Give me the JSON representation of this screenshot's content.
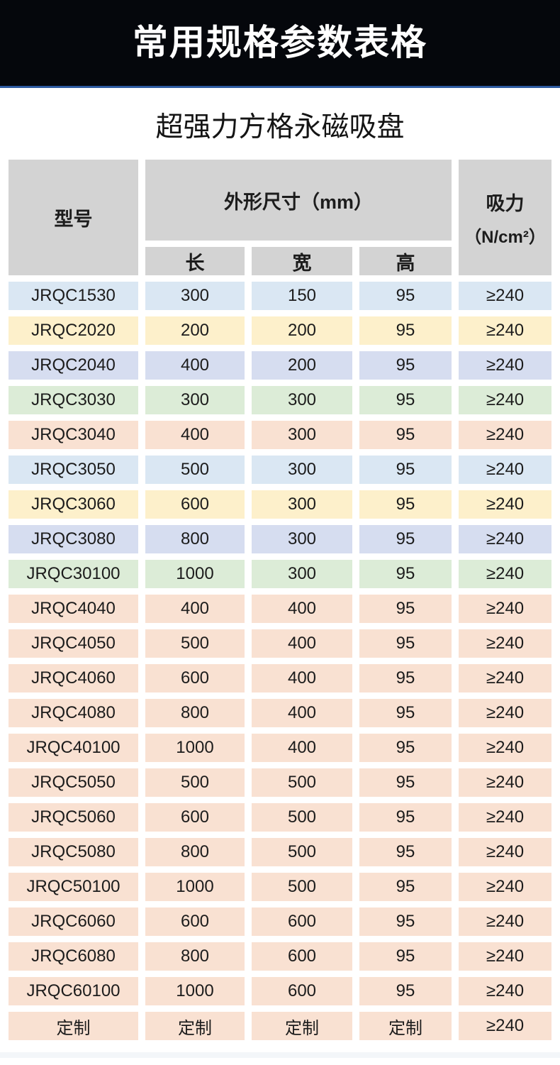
{
  "banner": {
    "title": "常用规格参数表格",
    "bg_color": "#05070c",
    "divider_color": "#2d5aa0"
  },
  "subtitle": "超强力方格永磁吸盘",
  "table": {
    "header": {
      "model": "型号",
      "dims_group": "外形尺寸（mm）",
      "sub_cols": [
        "长",
        "宽",
        "高"
      ],
      "force_line1": "吸力",
      "force_line2": "（N/cm²）",
      "bg": "#d3d3d3"
    },
    "row_colors": {
      "blue": "#dae7f3",
      "yellow": "#fdf0cb",
      "lavender": "#d6ddf0",
      "green": "#dcecd7",
      "peach": "#f9e1d2"
    },
    "rows": [
      {
        "model": "JRQC1530",
        "length": "300",
        "width": "150",
        "height": "95",
        "force": "≥240",
        "color": "blue"
      },
      {
        "model": "JRQC2020",
        "length": "200",
        "width": "200",
        "height": "95",
        "force": "≥240",
        "color": "yellow"
      },
      {
        "model": "JRQC2040",
        "length": "400",
        "width": "200",
        "height": "95",
        "force": "≥240",
        "color": "lavender"
      },
      {
        "model": "JRQC3030",
        "length": "300",
        "width": "300",
        "height": "95",
        "force": "≥240",
        "color": "green"
      },
      {
        "model": "JRQC3040",
        "length": "400",
        "width": "300",
        "height": "95",
        "force": "≥240",
        "color": "peach"
      },
      {
        "model": "JRQC3050",
        "length": "500",
        "width": "300",
        "height": "95",
        "force": "≥240",
        "color": "blue"
      },
      {
        "model": "JRQC3060",
        "length": "600",
        "width": "300",
        "height": "95",
        "force": "≥240",
        "color": "yellow"
      },
      {
        "model": "JRQC3080",
        "length": "800",
        "width": "300",
        "height": "95",
        "force": "≥240",
        "color": "lavender"
      },
      {
        "model": "JRQC30100",
        "length": "1000",
        "width": "300",
        "height": "95",
        "force": "≥240",
        "color": "green"
      },
      {
        "model": "JRQC4040",
        "length": "400",
        "width": "400",
        "height": "95",
        "force": "≥240",
        "color": "peach"
      },
      {
        "model": "JRQC4050",
        "length": "500",
        "width": "400",
        "height": "95",
        "force": "≥240",
        "color": "peach"
      },
      {
        "model": "JRQC4060",
        "length": "600",
        "width": "400",
        "height": "95",
        "force": "≥240",
        "color": "peach"
      },
      {
        "model": "JRQC4080",
        "length": "800",
        "width": "400",
        "height": "95",
        "force": "≥240",
        "color": "peach"
      },
      {
        "model": "JRQC40100",
        "length": "1000",
        "width": "400",
        "height": "95",
        "force": "≥240",
        "color": "peach"
      },
      {
        "model": "JRQC5050",
        "length": "500",
        "width": "500",
        "height": "95",
        "force": "≥240",
        "color": "peach"
      },
      {
        "model": "JRQC5060",
        "length": "600",
        "width": "500",
        "height": "95",
        "force": "≥240",
        "color": "peach"
      },
      {
        "model": "JRQC5080",
        "length": "800",
        "width": "500",
        "height": "95",
        "force": "≥240",
        "color": "peach"
      },
      {
        "model": "JRQC50100",
        "length": "1000",
        "width": "500",
        "height": "95",
        "force": "≥240",
        "color": "peach"
      },
      {
        "model": "JRQC6060",
        "length": "600",
        "width": "600",
        "height": "95",
        "force": "≥240",
        "color": "peach"
      },
      {
        "model": "JRQC6080",
        "length": "800",
        "width": "600",
        "height": "95",
        "force": "≥240",
        "color": "peach"
      },
      {
        "model": "JRQC60100",
        "length": "1000",
        "width": "600",
        "height": "95",
        "force": "≥240",
        "color": "peach"
      },
      {
        "model": "定制",
        "length": "定制",
        "width": "定制",
        "height": "定制",
        "force": "≥240",
        "color": "peach"
      }
    ]
  },
  "footer_band_color": "#f3f6f9"
}
